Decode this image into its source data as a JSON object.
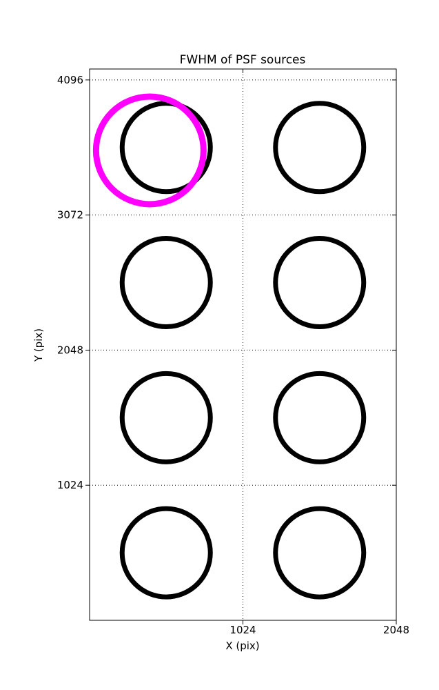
{
  "figure": {
    "background": "#ffffff"
  },
  "chart_data": {
    "type": "scatter",
    "title": "FWHM of PSF sources",
    "xlabel": "X (pix)",
    "ylabel": "Y (pix)",
    "xlim": [
      0,
      2048
    ],
    "ylim": [
      0,
      4179
    ],
    "xticks": [
      1024,
      2048
    ],
    "yticks": [
      1024,
      2048,
      3072,
      4096
    ],
    "grid": {
      "on": true,
      "style": "dotted",
      "color": "#000000"
    },
    "legend": {
      "shown": false
    },
    "series": [
      {
        "name": "psf-sources",
        "marker": "circle-outline",
        "color": "#000000",
        "marker_radius_px": 64,
        "stroke_px": 7,
        "points": [
          {
            "x": 512,
            "y": 3584
          },
          {
            "x": 1536,
            "y": 3584
          },
          {
            "x": 512,
            "y": 2560
          },
          {
            "x": 1536,
            "y": 2560
          },
          {
            "x": 512,
            "y": 1536
          },
          {
            "x": 1536,
            "y": 1536
          },
          {
            "x": 512,
            "y": 512
          },
          {
            "x": 1536,
            "y": 512
          }
        ]
      },
      {
        "name": "highlighted-source",
        "marker": "circle-outline",
        "color": "#FF00FF",
        "marker_radius_px": 78,
        "stroke_px": 9,
        "points": [
          {
            "x": 402,
            "y": 3562
          }
        ]
      }
    ]
  },
  "colors": {
    "axis": "#000000",
    "text": "#000000",
    "highlight": "#FF00FF"
  }
}
